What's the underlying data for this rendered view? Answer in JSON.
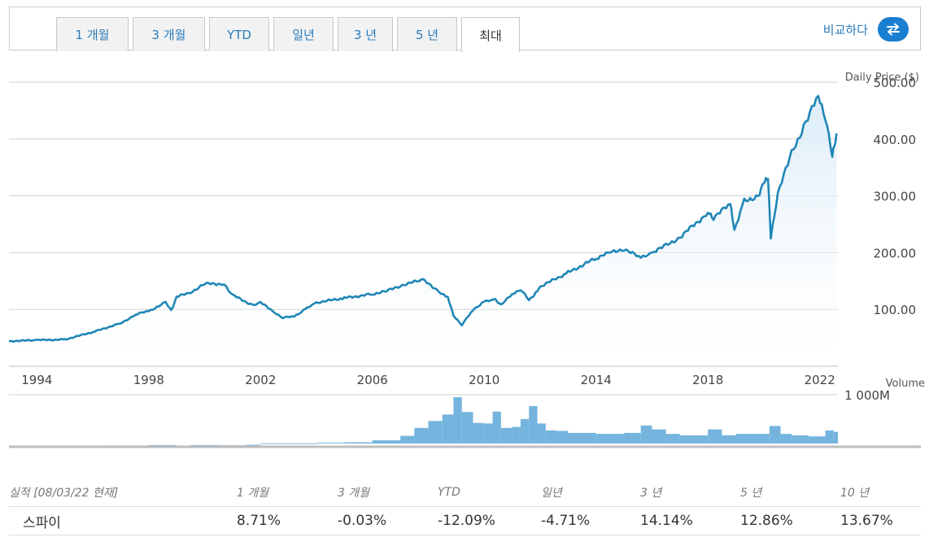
{
  "tabs": [
    {
      "label": "1 개월",
      "active": false
    },
    {
      "label": "3 개월",
      "active": false
    },
    {
      "label": "YTD",
      "active": false
    },
    {
      "label": "일년",
      "active": false
    },
    {
      "label": "3 년",
      "active": false
    },
    {
      "label": "5 년",
      "active": false
    },
    {
      "label": "최대",
      "active": true
    }
  ],
  "compare_label": "비교하다",
  "compare_icon": "swap-arrows-icon",
  "colors": {
    "line": "#1f86b6",
    "area_top": "#d9ebf7",
    "volume": "#74b4de",
    "grid": "#d0d0d0",
    "accent": "#1a7fd0"
  },
  "chart_data": [
    {
      "type": "area",
      "ylabel": "Daily Price ($)",
      "yticks": [
        "500.00",
        "400.00",
        "300.00",
        "200.00",
        "100.00"
      ],
      "ytick_values": [
        500,
        400,
        300,
        200,
        100
      ],
      "ylim": [
        0,
        530
      ],
      "xlim": [
        1993.0,
        2022.65
      ],
      "xticks": [
        "1994",
        "1998",
        "2002",
        "2006",
        "2010",
        "2014",
        "2018",
        "2022"
      ],
      "xtick_values": [
        1994,
        1998,
        2002,
        2006,
        2010,
        2014,
        2018,
        2022
      ],
      "grid": true,
      "series": [
        {
          "x": [
            1993.0,
            1994.0,
            1995.0,
            1996.0,
            1997.0,
            1997.6,
            1998.0,
            1998.6,
            1998.8,
            1999.0,
            1999.5,
            2000.0,
            2000.7,
            2001.0,
            2001.7,
            2002.0,
            2002.5,
            2002.8,
            2003.2,
            2003.6,
            2004.0,
            2005.0,
            2006.0,
            2006.5,
            2007.0,
            2007.8,
            2008.3,
            2008.7,
            2008.9,
            2009.2,
            2009.6,
            2010.0,
            2010.4,
            2010.6,
            2011.0,
            2011.3,
            2011.6,
            2011.8,
            2012.0,
            2013.0,
            2014.0,
            2014.5,
            2015.0,
            2015.6,
            2016.0,
            2016.5,
            2017.0,
            2018.0,
            2018.2,
            2018.8,
            2018.95,
            2019.3,
            2019.8,
            2020.0,
            2020.15,
            2020.25,
            2020.5,
            2021.0,
            2021.5,
            2021.95,
            2022.2,
            2022.45,
            2022.6
          ],
          "y": [
            44,
            46,
            47,
            60,
            76,
            92,
            97,
            112,
            98,
            122,
            130,
            145,
            145,
            125,
            108,
            112,
            95,
            85,
            88,
            100,
            112,
            120,
            127,
            132,
            142,
            152,
            135,
            120,
            90,
            72,
            100,
            113,
            118,
            107,
            128,
            134,
            118,
            125,
            140,
            165,
            190,
            200,
            207,
            190,
            200,
            212,
            227,
            270,
            262,
            285,
            240,
            290,
            300,
            322,
            335,
            225,
            305,
            375,
            430,
            475,
            440,
            370,
            410
          ]
        }
      ]
    },
    {
      "type": "bar",
      "ylabel": "Volume",
      "yticks": [
        "1 000M"
      ],
      "ytick_values": [
        1000
      ],
      "ylim": [
        0,
        1050
      ],
      "xlim": [
        1993.0,
        2022.65
      ],
      "series": [
        {
          "x": [
            1996.5,
            1997.0,
            1998.0,
            1999.0,
            1999.5,
            2000.5,
            2001.0,
            2001.5,
            2002.0,
            2003.0,
            2004.0,
            2005.0,
            2006.0,
            2007.0,
            2007.5,
            2008.0,
            2008.5,
            2008.9,
            2009.2,
            2009.6,
            2010.0,
            2010.3,
            2010.6,
            2011.0,
            2011.3,
            2011.6,
            2011.9,
            2012.2,
            2012.6,
            2013.0,
            2014.0,
            2015.0,
            2015.6,
            2016.0,
            2016.5,
            2017.0,
            2018.0,
            2018.5,
            2019.0,
            2020.2,
            2020.6,
            2021.0,
            2021.6,
            2022.2,
            2022.5
          ],
          "y": [
            25,
            25,
            35,
            25,
            35,
            30,
            30,
            40,
            70,
            70,
            80,
            90,
            130,
            220,
            380,
            520,
            650,
            1000,
            700,
            480,
            470,
            710,
            380,
            400,
            560,
            820,
            470,
            330,
            320,
            280,
            260,
            280,
            430,
            350,
            260,
            230,
            350,
            230,
            260,
            420,
            260,
            230,
            210,
            330,
            300
          ]
        }
      ]
    }
  ],
  "performance": {
    "header": {
      "label": "실적 [08/03/22 현재]",
      "periods": [
        "1 개월",
        "3 개월",
        "YTD",
        "일년",
        "3 년",
        "5 년",
        "10 년"
      ]
    },
    "rows": [
      {
        "name": "스파이",
        "values": [
          "8.71%",
          "-0.03%",
          "-12.09%",
          "-4.71%",
          "14.14%",
          "12.86%",
          "13.67%"
        ]
      }
    ]
  }
}
